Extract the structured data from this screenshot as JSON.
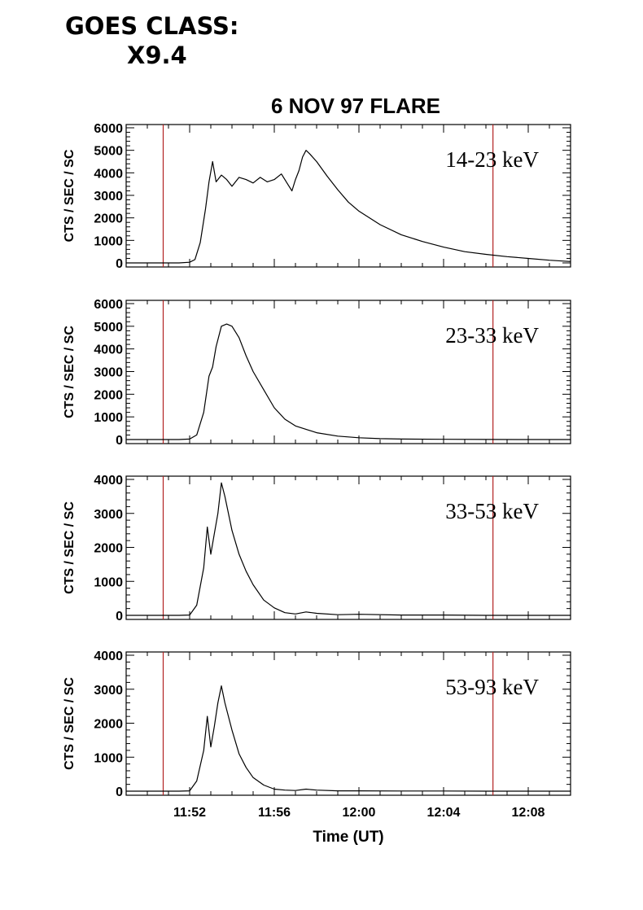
{
  "header": {
    "line1": "GOES CLASS:",
    "line2": "X9.4"
  },
  "colors": {
    "trace": "#000000",
    "marker": "#b22222",
    "axis": "#000000"
  },
  "chart_data": {
    "type": "line",
    "title": "6 NOV 97 FLARE",
    "xlabel": "Time (UT)",
    "xlim": [
      "11:49",
      "12:10"
    ],
    "x_ticks": [
      "11:52",
      "11:56",
      "12:00",
      "12:04",
      "12:08"
    ],
    "vertical_markers": [
      "11:50:45",
      "12:06:20"
    ],
    "panels": [
      {
        "band_label": "14-23 keV",
        "ylabel": "CTS / SEC / SC",
        "ylim": [
          0,
          6000
        ],
        "y_ticks": [
          "0",
          "1000",
          "2000",
          "3000",
          "4000",
          "5000",
          "6000"
        ],
        "series": [
          {
            "x": [
              "11:49",
              "11:51:30",
              "11:52:00",
              "11:52:15",
              "11:52:30",
              "11:52:45",
              "11:52:55",
              "11:53:05",
              "11:53:15",
              "11:53:30",
              "11:53:45",
              "11:54:00",
              "11:54:20",
              "11:54:40",
              "11:55:00",
              "11:55:20",
              "11:55:40",
              "11:56:00",
              "11:56:20",
              "11:56:40",
              "11:56:50",
              "11:57:00",
              "11:57:10",
              "11:57:20",
              "11:57:30",
              "11:57:40",
              "11:58:00",
              "11:58:30",
              "11:59:00",
              "11:59:30",
              "12:00:00",
              "12:01:00",
              "12:02:00",
              "12:03:00",
              "12:04:00",
              "12:05:00",
              "12:06:00",
              "12:07:00",
              "12:08:00",
              "12:09:00",
              "12:10:00"
            ],
            "values": [
              0,
              0,
              30,
              150,
              900,
              2400,
              3600,
              4500,
              3600,
              3900,
              3700,
              3400,
              3800,
              3700,
              3550,
              3800,
              3600,
              3700,
              3950,
              3450,
              3200,
              3700,
              4100,
              4700,
              5000,
              4850,
              4500,
              3850,
              3250,
              2700,
              2300,
              1700,
              1250,
              950,
              700,
              500,
              380,
              280,
              200,
              120,
              60
            ]
          }
        ]
      },
      {
        "band_label": "23-33 keV",
        "ylabel": "CTS / SEC / SC",
        "ylim": [
          0,
          6000
        ],
        "y_ticks": [
          "0",
          "1000",
          "2000",
          "3000",
          "4000",
          "5000",
          "6000"
        ],
        "series": [
          {
            "x": [
              "11:49",
              "11:51:30",
              "11:52:00",
              "11:52:20",
              "11:52:40",
              "11:52:55",
              "11:53:05",
              "11:53:15",
              "11:53:30",
              "11:53:45",
              "11:54:00",
              "11:54:20",
              "11:54:40",
              "11:55:00",
              "11:55:30",
              "11:56:00",
              "11:56:30",
              "11:57:00",
              "11:58:00",
              "11:59:00",
              "12:00:00",
              "12:01:00",
              "12:02:00",
              "12:04:00",
              "12:06:00",
              "12:08:00",
              "12:10:00"
            ],
            "values": [
              0,
              0,
              20,
              200,
              1200,
              2800,
              3200,
              4100,
              5000,
              5100,
              5000,
              4500,
              3700,
              3000,
              2200,
              1400,
              900,
              600,
              300,
              150,
              80,
              40,
              20,
              10,
              5,
              0,
              0
            ]
          }
        ]
      },
      {
        "band_label": "33-53 keV",
        "ylabel": "CTS / SEC / SC",
        "ylim": [
          0,
          4000
        ],
        "y_ticks": [
          "0",
          "1000",
          "2000",
          "3000",
          "4000"
        ],
        "series": [
          {
            "x": [
              "11:49",
              "11:51:30",
              "11:52:00",
              "11:52:20",
              "11:52:40",
              "11:52:50",
              "11:53:00",
              "11:53:10",
              "11:53:20",
              "11:53:30",
              "11:53:40",
              "11:54:00",
              "11:54:20",
              "11:54:40",
              "11:55:00",
              "11:55:30",
              "11:56:00",
              "11:56:30",
              "11:57:00",
              "11:57:30",
              "11:58:00",
              "11:59:00",
              "12:00:00",
              "12:02:00",
              "12:04:00",
              "12:06:00",
              "12:08:00",
              "12:10:00"
            ],
            "values": [
              0,
              0,
              10,
              300,
              1400,
              2600,
              1800,
              2400,
              3000,
              3900,
              3500,
              2500,
              1800,
              1300,
              900,
              450,
              220,
              80,
              40,
              100,
              60,
              20,
              30,
              10,
              10,
              0,
              0,
              0
            ]
          }
        ]
      },
      {
        "band_label": "53-93 keV",
        "ylabel": "CTS / SEC / SC",
        "ylim": [
          0,
          4000
        ],
        "y_ticks": [
          "0",
          "1000",
          "2000",
          "3000",
          "4000"
        ],
        "series": [
          {
            "x": [
              "11:49",
              "11:51:30",
              "11:52:00",
              "11:52:20",
              "11:52:40",
              "11:52:50",
              "11:53:00",
              "11:53:10",
              "11:53:20",
              "11:53:30",
              "11:53:40",
              "11:54:00",
              "11:54:20",
              "11:54:40",
              "11:55:00",
              "11:55:30",
              "11:56:00",
              "11:56:30",
              "11:57:00",
              "11:57:30",
              "11:58:00",
              "11:59:00",
              "12:00:00",
              "12:02:00",
              "12:04:00",
              "12:06:00",
              "12:08:00",
              "12:10:00"
            ],
            "values": [
              0,
              0,
              10,
              300,
              1200,
              2200,
              1300,
              1900,
              2600,
              3100,
              2600,
              1800,
              1100,
              700,
              400,
              180,
              60,
              30,
              20,
              60,
              30,
              10,
              10,
              5,
              5,
              0,
              0,
              0
            ]
          }
        ]
      }
    ]
  }
}
